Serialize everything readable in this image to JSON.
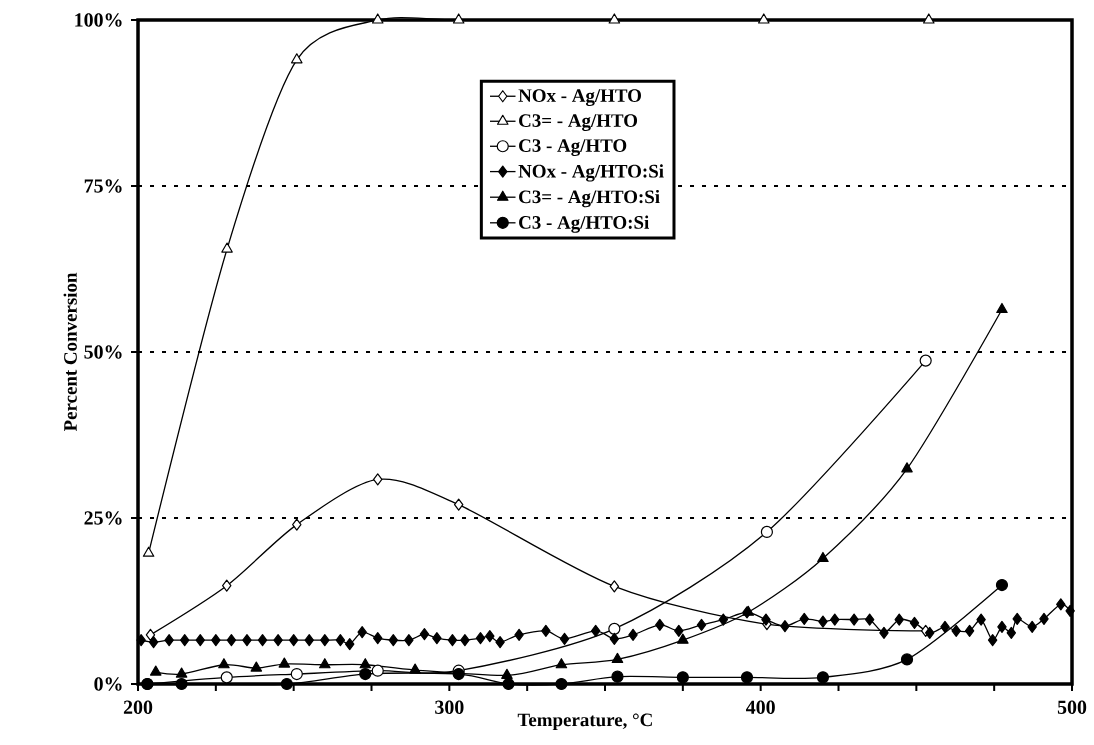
{
  "chart_data": {
    "type": "line",
    "xlabel": "Temperature, °C",
    "ylabel": "Percent Conversion",
    "xlim": [
      200,
      500
    ],
    "ylim": [
      0,
      100
    ],
    "xticks": [
      200,
      {
        "value": 225,
        "label": null
      },
      {
        "value": 250,
        "label": null
      },
      {
        "value": 275,
        "label": null
      },
      300,
      {
        "value": 325,
        "label": null
      },
      {
        "value": 350,
        "label": null
      },
      {
        "value": 375,
        "label": null
      },
      400,
      {
        "value": 425,
        "label": null
      },
      {
        "value": 450,
        "label": null
      },
      {
        "value": 475,
        "label": null
      },
      500
    ],
    "yticks": [
      {
        "value": 0,
        "label": "0%"
      },
      {
        "value": 25,
        "label": "25%"
      },
      {
        "value": 50,
        "label": "50%"
      },
      {
        "value": 75,
        "label": "75%"
      },
      {
        "value": 100,
        "label": "100%"
      }
    ],
    "grid": "y",
    "legend": "top",
    "line_style": "solid",
    "series": [
      {
        "name": "NOx - Ag/HTO",
        "color": "#000000",
        "marker": "diamond",
        "x": [
          204,
          228.5,
          251,
          277,
          303,
          353,
          402,
          453
        ],
        "values": [
          7.4,
          14.8,
          24,
          30.8,
          27,
          14.7,
          9,
          8
        ]
      },
      {
        "name": "C3= - Ag/HTO",
        "color": "#000000",
        "marker": "triangle",
        "x": [
          203.4,
          228.6,
          251,
          277,
          303,
          353,
          401,
          454
        ],
        "values": [
          19.7,
          65.5,
          94,
          100,
          100,
          100,
          100,
          100
        ]
      },
      {
        "name": "C3 - Ag/HTO",
        "color": "#000000",
        "marker": "circle",
        "x": [
          203,
          228.5,
          251,
          277,
          303,
          353,
          402,
          453
        ],
        "values": [
          0,
          1,
          1.5,
          2,
          2,
          8.3,
          22.9,
          48.7
        ]
      },
      {
        "name": "NOx - Ag/HTO:Si",
        "color": "#000000",
        "marker": "diamond",
        "x": [
          201,
          205,
          210,
          215,
          220,
          225,
          230,
          235,
          240,
          245,
          250,
          255,
          260,
          265,
          268,
          272,
          277,
          282,
          287,
          292,
          296,
          301,
          305,
          310,
          313,
          316.3,
          322.4,
          331,
          337,
          347,
          353,
          359,
          367.6,
          373.7,
          381,
          388,
          395.6,
          401.7,
          407.8,
          414,
          420,
          423.8,
          430,
          435,
          439.6,
          444.5,
          449.4,
          454.3,
          459.2,
          462.8,
          467.1,
          470.8,
          474.5,
          477.5,
          480.5,
          482.4,
          487.2,
          491,
          496.4,
          499.4
        ],
        "values": [
          6.6,
          6.3,
          6.6,
          6.6,
          6.6,
          6.6,
          6.6,
          6.6,
          6.6,
          6.6,
          6.6,
          6.6,
          6.6,
          6.6,
          6.0,
          7.8,
          6.9,
          6.6,
          6.6,
          7.5,
          6.9,
          6.6,
          6.6,
          6.9,
          7.2,
          6.3,
          7.4,
          8.0,
          6.8,
          8.0,
          6.8,
          7.4,
          8.9,
          8.0,
          8.9,
          9.7,
          10.8,
          9.7,
          8.7,
          9.8,
          9.4,
          9.7,
          9.7,
          9.7,
          7.7,
          9.7,
          9.2,
          7.7,
          8.6,
          8.0,
          8.0,
          9.7,
          6.6,
          8.6,
          7.7,
          9.8,
          8.6,
          9.8,
          12,
          11
        ]
      },
      {
        "name": "C3= - Ag/HTO:Si",
        "color": "#000000",
        "marker": "triangle",
        "x": [
          205.7,
          214,
          227.6,
          238,
          247,
          260,
          273,
          289,
          318.5,
          336,
          354,
          375,
          396,
          420,
          447,
          477.5
        ],
        "values": [
          1.8,
          1.5,
          2.9,
          2.4,
          3,
          2.9,
          2.9,
          2.1,
          1.3,
          2.9,
          3.7,
          6.6,
          10.8,
          18.9,
          32.4,
          56.4
        ]
      },
      {
        "name": "C3 - Ag/HTO:Si",
        "color": "#000000",
        "marker": "circle",
        "x": [
          203,
          214,
          247.8,
          273,
          303,
          319,
          336,
          354,
          375,
          395.6,
          420,
          447,
          477.5
        ],
        "values": [
          0,
          0,
          0,
          1.5,
          1.5,
          0,
          0,
          1.1,
          1,
          1,
          1,
          3.7,
          14.9
        ]
      }
    ]
  }
}
